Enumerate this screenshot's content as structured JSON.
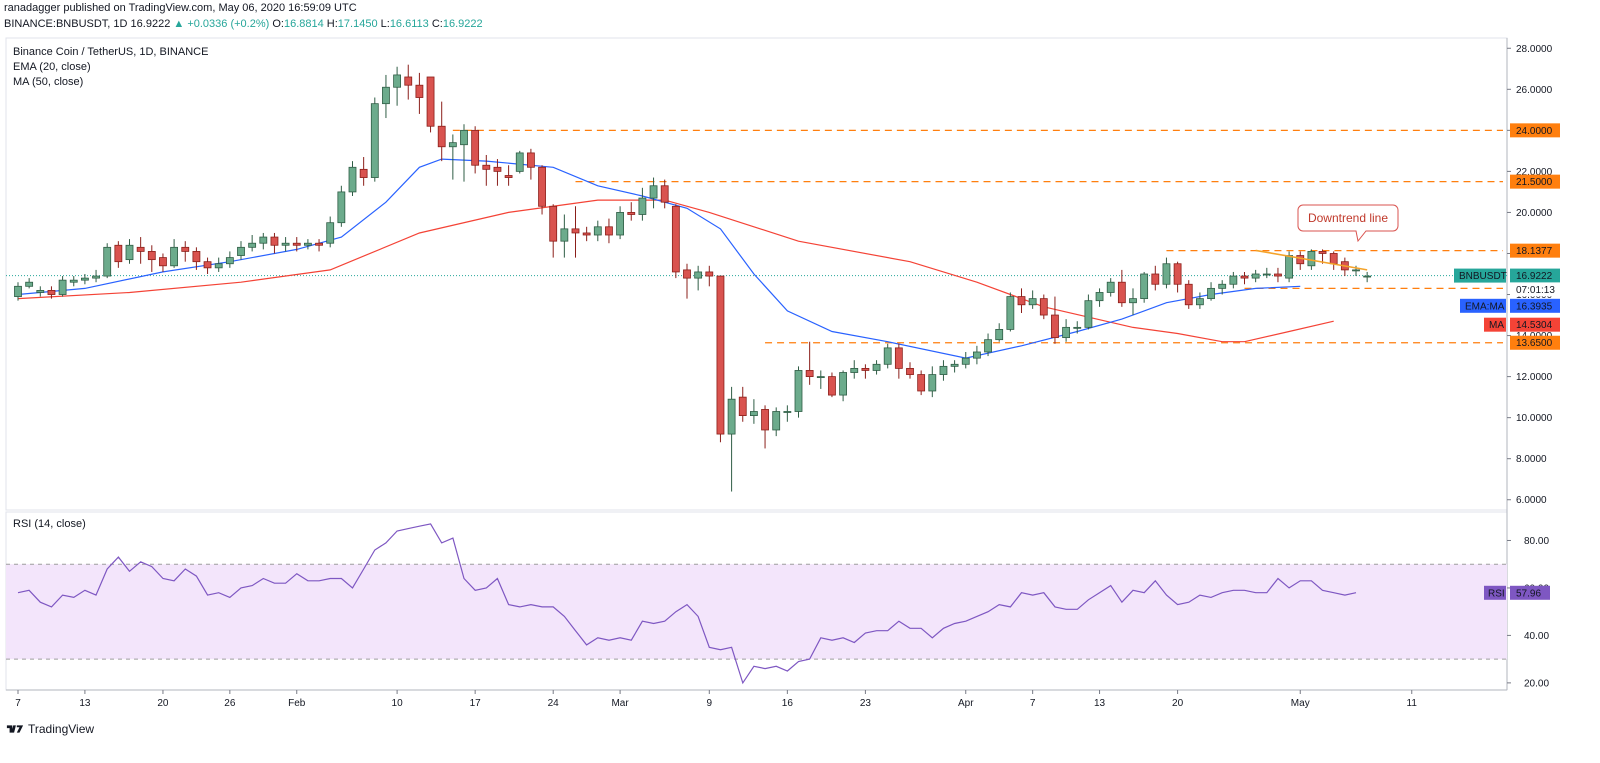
{
  "header": {
    "publisher_line": "ranadagger published on TradingView.com, May 06, 2020 16:59:09 UTC",
    "symbol": "BINANCE:BNBUSDT, 1D",
    "last": "16.9222",
    "change_arrow": "▲",
    "change": "+0.0336 (+0.2%)",
    "open_label": "O:",
    "open": "16.8814",
    "high_label": "H:",
    "high": "17.1450",
    "low_label": "L:",
    "low": "16.6113",
    "close_label": "C:",
    "close": "16.9222"
  },
  "legend": {
    "title": "Binance Coin / TetherUS, 1D, BINANCE",
    "ema": "EMA (20, close)",
    "ma": "MA (50, close)",
    "rsi": "RSI (14, close)"
  },
  "footer": {
    "brand": "TradingView"
  },
  "colors": {
    "up": "#26a69a",
    "up_fill": "#6cab8c",
    "down": "#d9534f",
    "ema": "#2962ff",
    "ma": "#f44336",
    "hline": "#ff7f0e",
    "rsi": "#7e57c2"
  },
  "chart_data": [
    {
      "type": "candlestick",
      "title": "Binance Coin / TetherUS, 1D, BINANCE",
      "ylim": [
        5.5,
        28.5
      ],
      "y_ticks": [
        6,
        8,
        10,
        12,
        14,
        16,
        18,
        20,
        22,
        24,
        26,
        28
      ],
      "y_tick_labels": [
        "6.0000",
        "8.0000",
        "10.0000",
        "12.0000",
        "14.0000",
        "16.0000",
        "18.0000",
        "20.0000",
        "22.0000",
        "24.0000",
        "26.0000",
        "28.0000"
      ],
      "x_ticks": [
        {
          "label": "7",
          "day": 0
        },
        {
          "label": "13",
          "day": 6
        },
        {
          "label": "20",
          "day": 13
        },
        {
          "label": "26",
          "day": 19
        },
        {
          "label": "Feb",
          "day": 25
        },
        {
          "label": "10",
          "day": 34
        },
        {
          "label": "17",
          "day": 41
        },
        {
          "label": "24",
          "day": 48
        },
        {
          "label": "Mar",
          "day": 54
        },
        {
          "label": "9",
          "day": 62
        },
        {
          "label": "16",
          "day": 69
        },
        {
          "label": "23",
          "day": 76
        },
        {
          "label": "Apr",
          "day": 85
        },
        {
          "label": "7",
          "day": 91
        },
        {
          "label": "13",
          "day": 97
        },
        {
          "label": "20",
          "day": 104
        },
        {
          "label": "May",
          "day": 115
        },
        {
          "label": "11",
          "day": 125
        }
      ],
      "candles": [
        [
          15.9,
          16.4,
          16.6,
          15.7
        ],
        [
          16.4,
          16.6,
          16.8,
          16.3
        ],
        [
          16.1,
          16.2,
          16.4,
          15.9
        ],
        [
          16.2,
          16.0,
          16.4,
          15.8
        ],
        [
          16.0,
          16.7,
          16.9,
          15.9
        ],
        [
          16.6,
          16.7,
          16.9,
          16.4
        ],
        [
          16.7,
          16.8,
          17.0,
          16.5
        ],
        [
          16.8,
          16.9,
          17.2,
          16.6
        ],
        [
          16.9,
          18.3,
          18.5,
          16.8
        ],
        [
          18.4,
          17.6,
          18.6,
          17.3
        ],
        [
          17.7,
          18.4,
          18.7,
          17.5
        ],
        [
          18.3,
          18.1,
          18.8,
          17.5
        ],
        [
          18.1,
          17.7,
          18.4,
          17.1
        ],
        [
          17.8,
          17.4,
          18.0,
          17.1
        ],
        [
          17.4,
          18.3,
          18.7,
          17.3
        ],
        [
          18.3,
          18.1,
          18.6,
          17.6
        ],
        [
          18.1,
          17.6,
          18.3,
          17.2
        ],
        [
          17.6,
          17.3,
          17.8,
          17.0
        ],
        [
          17.3,
          17.5,
          17.8,
          17.1
        ],
        [
          17.5,
          17.8,
          18.1,
          17.3
        ],
        [
          17.9,
          18.3,
          18.6,
          17.7
        ],
        [
          18.3,
          18.5,
          18.9,
          18.1
        ],
        [
          18.5,
          18.8,
          19.0,
          18.2
        ],
        [
          18.8,
          18.4,
          19.0,
          18.0
        ],
        [
          18.4,
          18.5,
          18.8,
          18.1
        ],
        [
          18.5,
          18.4,
          18.8,
          18.1
        ],
        [
          18.4,
          18.5,
          18.7,
          18.2
        ],
        [
          18.5,
          18.4,
          18.7,
          18.1
        ],
        [
          18.5,
          19.5,
          19.8,
          18.3
        ],
        [
          19.5,
          21.0,
          21.3,
          19.3
        ],
        [
          21.0,
          22.2,
          22.5,
          20.8
        ],
        [
          22.1,
          21.7,
          22.7,
          21.3
        ],
        [
          21.7,
          25.3,
          25.6,
          21.5
        ],
        [
          25.3,
          26.1,
          26.7,
          24.6
        ],
        [
          26.1,
          26.7,
          27.1,
          25.2
        ],
        [
          26.6,
          26.2,
          27.2,
          25.5
        ],
        [
          26.2,
          25.6,
          26.8,
          24.8
        ],
        [
          26.6,
          24.2,
          26.6,
          23.9
        ],
        [
          24.2,
          23.2,
          25.4,
          22.5
        ],
        [
          23.2,
          23.4,
          23.8,
          21.6
        ],
        [
          23.3,
          24.0,
          24.3,
          21.5
        ],
        [
          24.0,
          22.3,
          24.2,
          21.9
        ],
        [
          22.3,
          22.1,
          22.8,
          21.3
        ],
        [
          22.2,
          22.0,
          22.6,
          21.3
        ],
        [
          21.8,
          21.7,
          22.3,
          21.3
        ],
        [
          22.0,
          22.9,
          23.0,
          21.9
        ],
        [
          22.9,
          22.2,
          23.1,
          21.6
        ],
        [
          22.2,
          20.3,
          22.3,
          19.9
        ],
        [
          20.3,
          18.6,
          20.4,
          17.8
        ],
        [
          18.6,
          19.2,
          19.9,
          17.8
        ],
        [
          19.2,
          19.0,
          20.3,
          17.8
        ],
        [
          19.0,
          18.9,
          19.3,
          18.6
        ],
        [
          18.9,
          19.3,
          19.6,
          18.6
        ],
        [
          19.3,
          18.9,
          19.7,
          18.5
        ],
        [
          18.9,
          20.0,
          20.3,
          18.7
        ],
        [
          20.0,
          19.9,
          20.5,
          19.6
        ],
        [
          19.9,
          20.7,
          21.2,
          19.6
        ],
        [
          20.7,
          21.3,
          21.7,
          20.2
        ],
        [
          21.3,
          20.5,
          21.6,
          20.2
        ],
        [
          20.3,
          17.1,
          20.4,
          16.8
        ],
        [
          17.2,
          16.8,
          17.5,
          15.8
        ],
        [
          16.8,
          17.1,
          17.4,
          16.2
        ],
        [
          17.1,
          16.9,
          17.4,
          16.4
        ],
        [
          16.9,
          9.2,
          16.9,
          8.8
        ],
        [
          9.2,
          10.9,
          11.5,
          6.4
        ],
        [
          11.0,
          10.1,
          11.5,
          9.8
        ],
        [
          10.1,
          10.3,
          10.9,
          9.7
        ],
        [
          10.4,
          9.4,
          10.6,
          8.5
        ],
        [
          9.4,
          10.3,
          10.5,
          9.1
        ],
        [
          10.3,
          10.3,
          10.6,
          9.8
        ],
        [
          10.3,
          12.3,
          12.5,
          10.0
        ],
        [
          12.3,
          12.0,
          13.7,
          11.6
        ],
        [
          12.0,
          12.0,
          12.3,
          11.4
        ],
        [
          12.0,
          11.1,
          12.2,
          11.0
        ],
        [
          11.1,
          12.2,
          12.3,
          10.8
        ],
        [
          12.2,
          12.4,
          12.8,
          11.9
        ],
        [
          12.4,
          12.3,
          12.6,
          11.9
        ],
        [
          12.3,
          12.6,
          12.8,
          12.1
        ],
        [
          12.6,
          13.4,
          13.6,
          12.4
        ],
        [
          13.4,
          12.4,
          13.6,
          11.9
        ],
        [
          12.4,
          12.1,
          12.7,
          11.9
        ],
        [
          12.1,
          11.3,
          12.3,
          11.1
        ],
        [
          11.3,
          12.1,
          12.5,
          11.0
        ],
        [
          12.1,
          12.5,
          12.8,
          11.8
        ],
        [
          12.5,
          12.6,
          12.8,
          12.2
        ],
        [
          12.6,
          12.9,
          13.2,
          12.4
        ],
        [
          12.9,
          13.2,
          13.5,
          12.6
        ],
        [
          13.2,
          13.8,
          14.1,
          13.0
        ],
        [
          13.8,
          14.3,
          14.6,
          13.7
        ],
        [
          14.3,
          15.9,
          16.1,
          14.2
        ],
        [
          15.9,
          15.5,
          16.3,
          15.1
        ],
        [
          15.5,
          15.8,
          16.2,
          15.3
        ],
        [
          15.8,
          15.0,
          16.0,
          14.8
        ],
        [
          15.0,
          13.9,
          15.9,
          13.6
        ],
        [
          13.9,
          14.4,
          14.8,
          13.7
        ],
        [
          14.4,
          14.4,
          14.7,
          14.1
        ],
        [
          14.4,
          15.7,
          16.0,
          14.3
        ],
        [
          15.7,
          16.1,
          16.3,
          15.4
        ],
        [
          16.1,
          16.6,
          16.8,
          15.9
        ],
        [
          16.6,
          15.6,
          17.2,
          15.4
        ],
        [
          15.6,
          15.8,
          16.3,
          15.0
        ],
        [
          15.8,
          17.0,
          17.1,
          15.6
        ],
        [
          17.0,
          16.5,
          17.4,
          16.2
        ],
        [
          16.5,
          17.5,
          17.8,
          16.3
        ],
        [
          17.5,
          16.5,
          17.6,
          16.1
        ],
        [
          16.5,
          15.5,
          16.7,
          15.3
        ],
        [
          15.5,
          15.8,
          16.1,
          15.3
        ],
        [
          15.8,
          16.3,
          16.6,
          15.7
        ],
        [
          16.3,
          16.5,
          16.7,
          16.0
        ],
        [
          16.5,
          16.9,
          17.1,
          16.3
        ],
        [
          16.9,
          16.8,
          17.1,
          16.5
        ],
        [
          16.8,
          17.0,
          17.2,
          16.6
        ],
        [
          17.0,
          17.0,
          17.3,
          16.8
        ],
        [
          17.0,
          16.9,
          17.3,
          16.6
        ],
        [
          16.8,
          17.9,
          18.1,
          16.6
        ],
        [
          17.9,
          17.5,
          18.1,
          17.2
        ],
        [
          17.4,
          18.1,
          18.2,
          17.2
        ],
        [
          18.1,
          18.0,
          18.2,
          17.5
        ],
        [
          18.0,
          17.5,
          18.1,
          17.2
        ],
        [
          17.6,
          17.2,
          17.8,
          16.9
        ],
        [
          17.2,
          17.2,
          17.4,
          16.9
        ],
        [
          16.9,
          16.9,
          17.1,
          16.6
        ]
      ],
      "ema_20": [
        [
          0,
          16.0
        ],
        [
          6,
          16.3
        ],
        [
          13,
          17.1
        ],
        [
          19,
          17.6
        ],
        [
          25,
          18.2
        ],
        [
          29,
          18.8
        ],
        [
          33,
          20.5
        ],
        [
          36,
          22.2
        ],
        [
          38,
          22.6
        ],
        [
          42,
          22.5
        ],
        [
          48,
          22.2
        ],
        [
          52,
          21.3
        ],
        [
          56,
          20.8
        ],
        [
          60,
          20.2
        ],
        [
          63,
          19.2
        ],
        [
          66,
          17.0
        ],
        [
          69,
          15.2
        ],
        [
          73,
          14.2
        ],
        [
          78,
          13.7
        ],
        [
          85,
          12.9
        ],
        [
          90,
          13.5
        ],
        [
          95,
          14.2
        ],
        [
          99,
          14.8
        ],
        [
          103,
          15.6
        ],
        [
          107,
          16.0
        ],
        [
          111,
          16.3
        ],
        [
          115,
          16.4
        ]
      ],
      "ma_50": [
        [
          0,
          15.8
        ],
        [
          10,
          16.1
        ],
        [
          20,
          16.6
        ],
        [
          28,
          17.2
        ],
        [
          36,
          19.0
        ],
        [
          44,
          20.0
        ],
        [
          52,
          20.6
        ],
        [
          58,
          20.6
        ],
        [
          62,
          20.0
        ],
        [
          70,
          18.6
        ],
        [
          80,
          17.6
        ],
        [
          86,
          16.6
        ],
        [
          92,
          15.4
        ],
        [
          100,
          14.4
        ],
        [
          104,
          14.1
        ],
        [
          108,
          13.7
        ],
        [
          110,
          13.7
        ],
        [
          114,
          14.2
        ],
        [
          118,
          14.7
        ]
      ],
      "horizontal_levels": [
        {
          "value": 24.0,
          "label": "24.0000",
          "start_day": 39
        },
        {
          "value": 21.5,
          "label": "21.5000",
          "start_day": 50
        },
        {
          "value": 18.1377,
          "label": "18.1377",
          "start_day": 103
        },
        {
          "value": 16.3,
          "label": "16.3000",
          "start_day": 110
        },
        {
          "value": 13.65,
          "label": "13.6500",
          "start_day": 67
        }
      ],
      "downtrend_line": {
        "start": [
          111,
          18.15
        ],
        "end": [
          121,
          17.2
        ],
        "label": "Downtrend line"
      },
      "price_tags": [
        {
          "label": "BNBUSDT",
          "value": "16.9222",
          "y": 16.9222,
          "color": "#26a69a"
        },
        {
          "label": "",
          "value": "07:01:13",
          "y": 16.25,
          "color": "#ffffff",
          "text_color": "#131722"
        },
        {
          "label": "EMA:MA",
          "value": "16.3935",
          "y": 15.45,
          "color": "#2962ff"
        },
        {
          "label": "MA",
          "value": "14.5304",
          "y": 14.53,
          "color": "#f44336"
        }
      ]
    },
    {
      "type": "line",
      "title": "RSI (14, close)",
      "ylim": [
        17,
        92
      ],
      "y_ticks": [
        20,
        40,
        60,
        80
      ],
      "y_tick_labels": [
        "20.00",
        "40.00",
        "60.00",
        "80.00"
      ],
      "band": [
        30,
        70
      ],
      "last_label": "RSI",
      "last_value": "57.96",
      "values": [
        58,
        59,
        54,
        52,
        57,
        56,
        59,
        57,
        68,
        73,
        67,
        71,
        69,
        64,
        63,
        68,
        65,
        57,
        58,
        56,
        60,
        61,
        64,
        62,
        62,
        66,
        63,
        63,
        64,
        64,
        60,
        68,
        76,
        79,
        84,
        85,
        86,
        87,
        79,
        81,
        64,
        59,
        60,
        64,
        53,
        52,
        53,
        52,
        52,
        48,
        42,
        36,
        39,
        38,
        39,
        38,
        46,
        45,
        46,
        50,
        53,
        48,
        35,
        34,
        35,
        20,
        27,
        26,
        27,
        25,
        29,
        30,
        39,
        38,
        39,
        37,
        41,
        42,
        42,
        46,
        43,
        43,
        39,
        43,
        45,
        46,
        48,
        50,
        53,
        52,
        58,
        57,
        58,
        52,
        51,
        51,
        55,
        58,
        61,
        54,
        59,
        58,
        63,
        57,
        53,
        54,
        57,
        56,
        58,
        59,
        59,
        58,
        58,
        64,
        60,
        63,
        63,
        59,
        58,
        57,
        58
      ]
    }
  ]
}
